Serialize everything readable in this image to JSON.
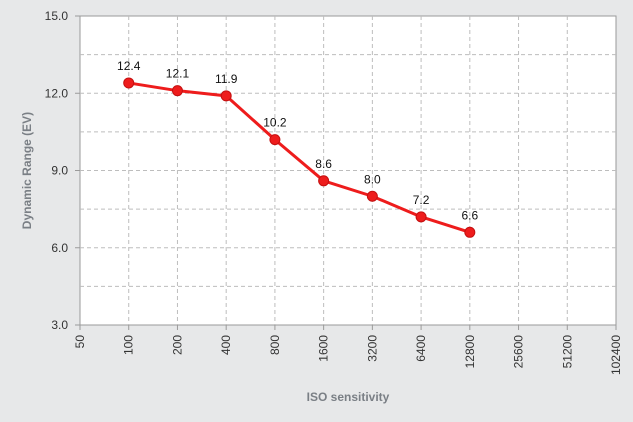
{
  "chart_data": {
    "type": "line",
    "xlabel": "ISO sensitivity",
    "ylabel": "Dynamic Range (EV)",
    "x_scale": "log2",
    "x_ticks": [
      "50",
      "100",
      "200",
      "400",
      "800",
      "1600",
      "3200",
      "6400",
      "12800",
      "25600",
      "51200",
      "102400"
    ],
    "y_ticks": [
      "3.0",
      "6.0",
      "9.0",
      "12.0",
      "15.0"
    ],
    "ylim": [
      3,
      15
    ],
    "grid": true,
    "legend": "none",
    "series": [
      {
        "x": [
          100,
          200,
          400,
          800,
          1600,
          3200,
          6400,
          12800
        ],
        "y": [
          12.4,
          12.1,
          11.9,
          10.2,
          8.6,
          8.0,
          7.2,
          6.6
        ],
        "labels": [
          "12.4",
          "12.1",
          "11.9",
          "10.2",
          "8.6",
          "8.0",
          "7.2",
          "6.6"
        ],
        "color": "#ee1c1c"
      }
    ],
    "colors": {
      "background": "#e7e8e9",
      "plot_area": "#ffffff",
      "grid": "#bdbdbd"
    }
  }
}
